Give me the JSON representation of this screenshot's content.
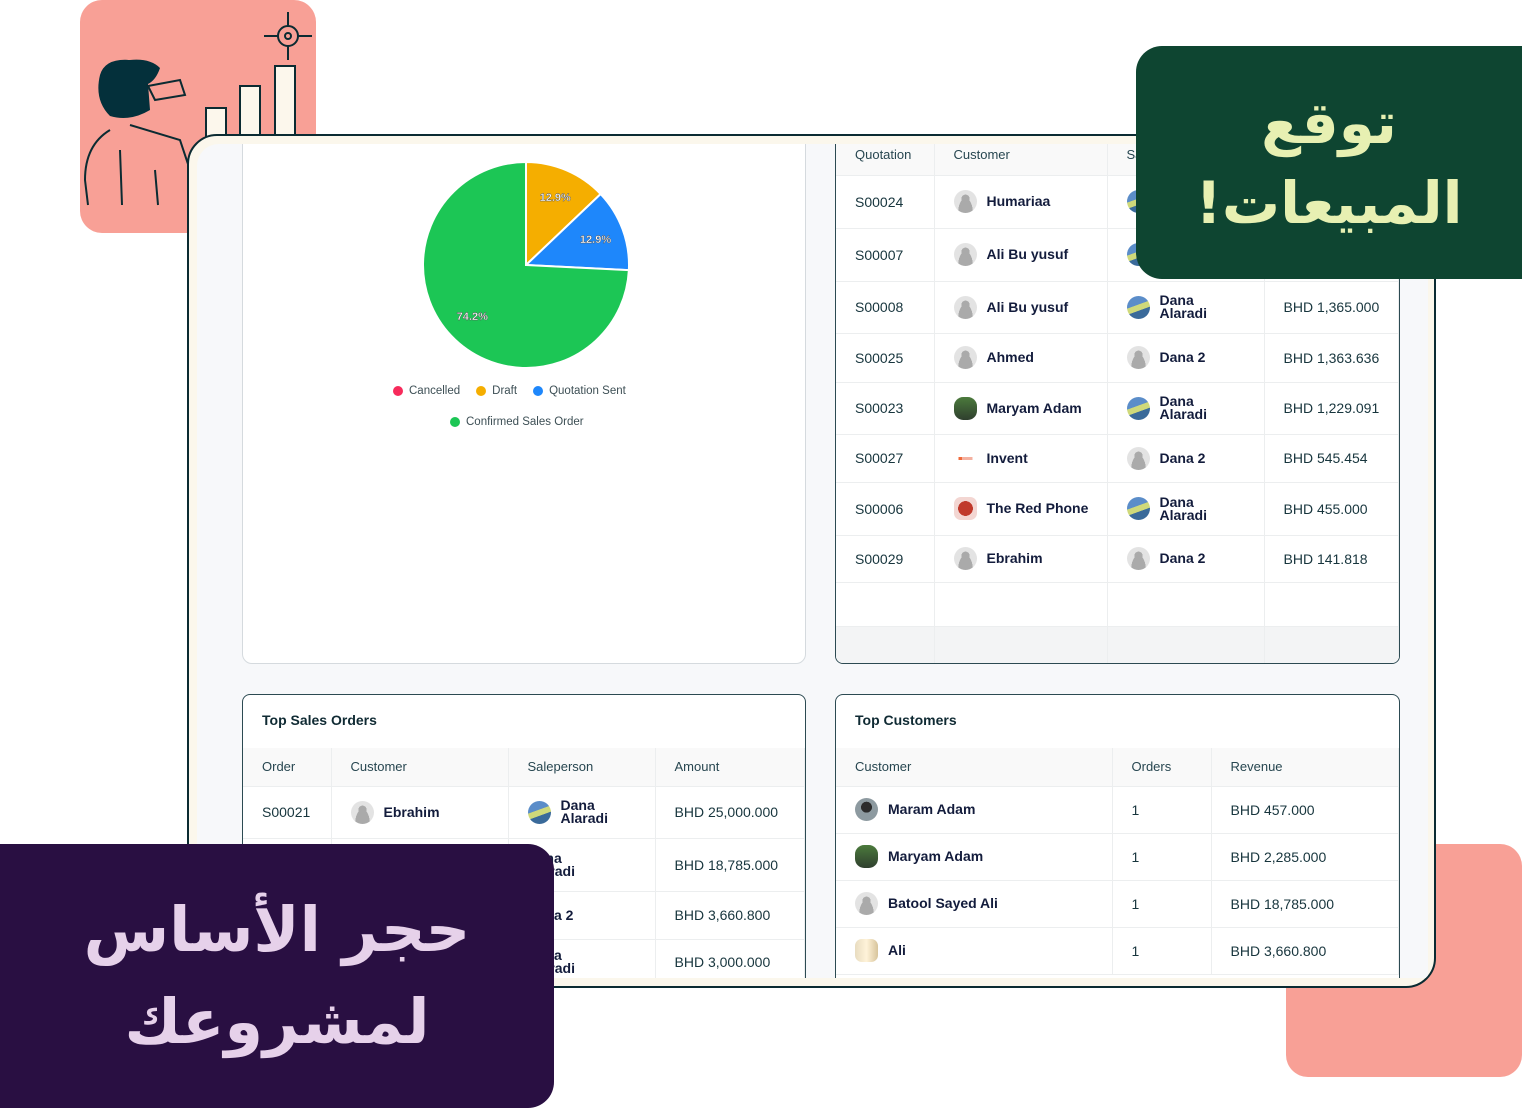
{
  "colors": {
    "brand_pink": "#f8a096",
    "banner_green": "#0e4531",
    "banner_green_text": "#e7f0b2",
    "banner_purple": "#290f42",
    "banner_purple_text": "#e6d1ea"
  },
  "banners": {
    "forecast": {
      "line1": "توقع",
      "line2": "المبيعات!"
    },
    "foundation": {
      "line1": "حجر الأساس",
      "line2": "لمشروعك"
    }
  },
  "chart_data": {
    "type": "pie",
    "slices": [
      {
        "label": "Cancelled",
        "value": 0,
        "color": "#f72b5b"
      },
      {
        "label": "Draft",
        "value": 12.9,
        "color": "#f5ae00"
      },
      {
        "label": "Quotation Sent",
        "value": 12.9,
        "color": "#1e87fb"
      },
      {
        "label": "Confirmed Sales Order",
        "value": 74.2,
        "color": "#1cc655"
      }
    ],
    "data_labels": [
      "12.9%",
      "12.9%",
      "74.2%"
    ],
    "legend": "bottom"
  },
  "quotations": {
    "headers": [
      "Quotation",
      "Customer",
      "Sa",
      ""
    ],
    "rows": [
      {
        "id": "S00024",
        "customer": "Humariaa",
        "cav": "",
        "salesperson": "",
        "sav": "photo",
        "amount": ""
      },
      {
        "id": "S00007",
        "customer": "Ali Bu yusuf",
        "cav": "",
        "salesperson": "",
        "sav": "photo",
        "amount": ""
      },
      {
        "id": "S00008",
        "customer": "Ali Bu yusuf",
        "cav": "",
        "salesperson": "Dana Alaradi",
        "sav": "photo",
        "amount": "BHD 1,365.000"
      },
      {
        "id": "S00025",
        "customer": "Ahmed",
        "cav": "",
        "salesperson": "Dana 2",
        "sav": "",
        "amount": "BHD 1,363.636"
      },
      {
        "id": "S00023",
        "customer": "Maryam Adam",
        "cav": "green",
        "salesperson": "Dana Alaradi",
        "sav": "photo",
        "amount": "BHD 1,229.091"
      },
      {
        "id": "S00027",
        "customer": "Invent",
        "cav": "logo",
        "salesperson": "Dana 2",
        "sav": "",
        "amount": "BHD 545.454"
      },
      {
        "id": "S00006",
        "customer": "The Red Phone",
        "cav": "phone",
        "salesperson": "Dana Alaradi",
        "sav": "photo",
        "amount": "BHD 455.000"
      },
      {
        "id": "S00029",
        "customer": "Ebrahim",
        "cav": "",
        "salesperson": "Dana 2",
        "sav": "",
        "amount": "BHD 141.818"
      }
    ]
  },
  "top_sales_orders": {
    "title": "Top Sales Orders",
    "headers": [
      "Order",
      "Customer",
      "Saleperson",
      "Amount"
    ],
    "rows": [
      {
        "id": "S00021",
        "customer": "Ebrahim",
        "cav": "",
        "salesperson": "Dana Alaradi",
        "sav": "photo",
        "amount": "BHD 25,000.000"
      },
      {
        "id": "",
        "customer": "",
        "cav": "none",
        "salesperson": "Dana Alaradi",
        "sav": "none",
        "amount": "BHD 18,785.000"
      },
      {
        "id": "",
        "customer": "",
        "cav": "none",
        "salesperson": "Dana 2",
        "sav": "none",
        "amount": "BHD 3,660.800"
      },
      {
        "id": "",
        "customer": "",
        "cav": "none",
        "salesperson": "Dana Alaradi",
        "sav": "none",
        "amount": "BHD 3,000.000"
      }
    ]
  },
  "top_customers": {
    "title": "Top Customers",
    "headers": [
      "Customer",
      "Orders",
      "Revenue"
    ],
    "rows": [
      {
        "customer": "Maram Adam",
        "cav": "maram",
        "orders": "1",
        "revenue": "BHD 457.000"
      },
      {
        "customer": "Maryam Adam",
        "cav": "green",
        "orders": "1",
        "revenue": "BHD 2,285.000"
      },
      {
        "customer": "Batool Sayed Ali",
        "cav": "",
        "orders": "1",
        "revenue": "BHD 18,785.000"
      },
      {
        "customer": "Ali",
        "cav": "girl",
        "orders": "1",
        "revenue": "BHD 3,660.800"
      }
    ]
  }
}
